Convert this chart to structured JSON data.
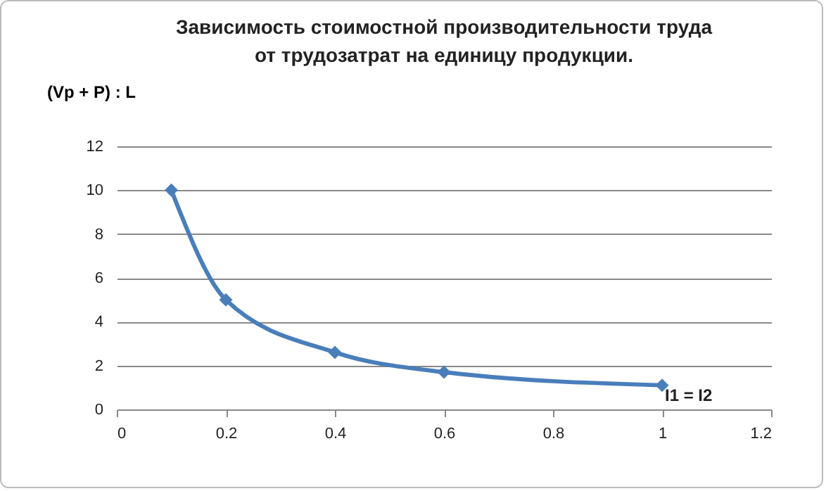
{
  "chart_data": {
    "type": "line",
    "title": "Зависимость стоимостной производительности труда\nот трудозатрат на единицу продукции.",
    "ylabel": "(Vp + P) : L",
    "x": [
      0.1,
      0.2,
      0.4,
      0.6,
      1
    ],
    "series": [
      {
        "color": "#4a7ebb",
        "values": [
          10,
          5,
          2.6,
          1.7,
          1.1
        ]
      }
    ],
    "xlim": [
      0,
      1.2
    ],
    "xticks": [
      0,
      0.2,
      0.4,
      0.6,
      0.8,
      1,
      1.2
    ],
    "ylim": [
      0,
      12
    ],
    "yticks": [
      0,
      2,
      4,
      6,
      8,
      10,
      12
    ],
    "grid": "y",
    "marker": "diamond",
    "line_style": "solid",
    "annotations": [
      {
        "text": "I1 = I2",
        "x": 1,
        "y": 1.1
      }
    ]
  }
}
